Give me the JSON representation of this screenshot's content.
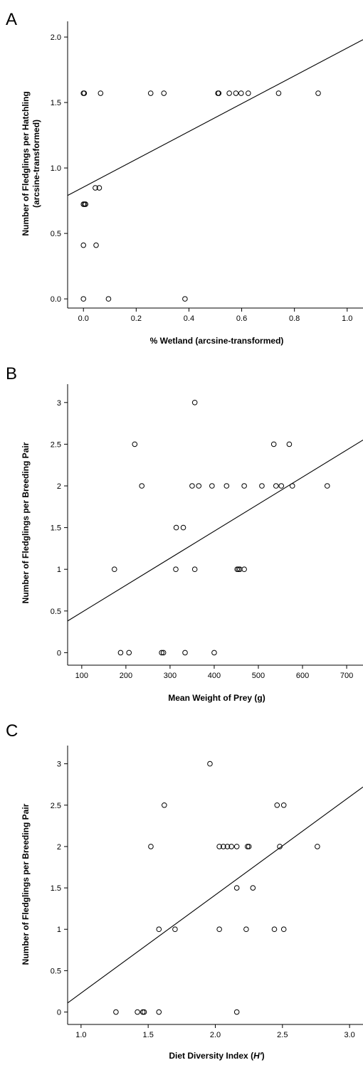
{
  "chart_data": [
    {
      "panel": "A",
      "type": "scatter",
      "xlabel": "% Wetland (arcsine-transformed)",
      "ylabel": "Number of Fledglings per Hatchling",
      "ylabel2": "(arcsine-transformed)",
      "xlim": [
        -0.06,
        1.06
      ],
      "ylim": [
        -0.07,
        2.12
      ],
      "xticks": [
        "0.0",
        "0.2",
        "0.4",
        "0.6",
        "0.8",
        "1.0"
      ],
      "xtick_values": [
        0.0,
        0.2,
        0.4,
        0.6,
        0.8,
        1.0
      ],
      "yticks": [
        "0.0",
        "0.5",
        "1.0",
        "1.5",
        "2.0"
      ],
      "ytick_values": [
        0.0,
        0.5,
        1.0,
        1.5,
        2.0
      ],
      "points": [
        [
          0.0,
          1.571
        ],
        [
          0.003,
          1.571
        ],
        [
          0.065,
          1.571
        ],
        [
          0.255,
          1.571
        ],
        [
          0.305,
          1.571
        ],
        [
          0.51,
          1.571
        ],
        [
          0.513,
          1.571
        ],
        [
          0.553,
          1.571
        ],
        [
          0.578,
          1.571
        ],
        [
          0.598,
          1.571
        ],
        [
          0.625,
          1.571
        ],
        [
          0.74,
          1.571
        ],
        [
          0.89,
          1.571
        ],
        [
          0.045,
          0.848
        ],
        [
          0.06,
          0.848
        ],
        [
          0.0,
          0.723
        ],
        [
          0.004,
          0.723
        ],
        [
          0.008,
          0.723
        ],
        [
          0.0,
          0.41
        ],
        [
          0.048,
          0.41
        ],
        [
          0.0,
          0.0
        ],
        [
          0.095,
          0.0
        ],
        [
          0.385,
          0.0
        ]
      ],
      "fit_line": [
        [
          -0.06,
          0.79
        ],
        [
          1.06,
          1.98
        ]
      ]
    },
    {
      "panel": "B",
      "type": "scatter",
      "xlabel": "Mean Weight of Prey (g)",
      "ylabel": "Number of Fledglings per Breeding Pair",
      "xlim": [
        68,
        737
      ],
      "ylim": [
        -0.15,
        3.22
      ],
      "xticks": [
        "100",
        "200",
        "300",
        "400",
        "500",
        "600",
        "700"
      ],
      "xtick_values": [
        100,
        200,
        300,
        400,
        500,
        600,
        700
      ],
      "yticks": [
        "0",
        "0.5",
        "1",
        "1.5",
        "2",
        "2.5",
        "3"
      ],
      "ytick_values": [
        0,
        0.5,
        1,
        1.5,
        2,
        2.5,
        3
      ],
      "points": [
        [
          356,
          3.0
        ],
        [
          220,
          2.5
        ],
        [
          535,
          2.5
        ],
        [
          570,
          2.5
        ],
        [
          236,
          2.0
        ],
        [
          350,
          2.0
        ],
        [
          365,
          2.0
        ],
        [
          395,
          2.0
        ],
        [
          428,
          2.0
        ],
        [
          468,
          2.0
        ],
        [
          508,
          2.0
        ],
        [
          540,
          2.0
        ],
        [
          552,
          2.0
        ],
        [
          577,
          2.0
        ],
        [
          656,
          2.0
        ],
        [
          314,
          1.5
        ],
        [
          330,
          1.5
        ],
        [
          174,
          1.0
        ],
        [
          313,
          1.0
        ],
        [
          356,
          1.0
        ],
        [
          452,
          1.0
        ],
        [
          455,
          1.0
        ],
        [
          458,
          1.0
        ],
        [
          468,
          1.0
        ],
        [
          188,
          0.0
        ],
        [
          207,
          0.0
        ],
        [
          281,
          0.0
        ],
        [
          285,
          0.0
        ],
        [
          334,
          0.0
        ],
        [
          400,
          0.0
        ]
      ],
      "fit_line": [
        [
          68,
          0.38
        ],
        [
          737,
          2.55
        ]
      ]
    },
    {
      "panel": "C",
      "type": "scatter",
      "xlabel": "Diet Diversity Index (",
      "xlabel_italic": "H′",
      "xlabel_end": ")",
      "ylabel": "Number of Fledglings per Breeding Pair",
      "xlim": [
        0.9,
        3.1
      ],
      "ylim": [
        -0.15,
        3.22
      ],
      "xticks": [
        "1.0",
        "1.5",
        "2.0",
        "2.5",
        "3.0"
      ],
      "xtick_values": [
        1.0,
        1.5,
        2.0,
        2.5,
        3.0
      ],
      "yticks": [
        "0",
        "0.5",
        "1",
        "1.5",
        "2",
        "2.5",
        "3"
      ],
      "ytick_values": [
        0,
        0.5,
        1,
        1.5,
        2,
        2.5,
        3
      ],
      "points": [
        [
          1.96,
          3.0
        ],
        [
          1.62,
          2.5
        ],
        [
          2.46,
          2.5
        ],
        [
          2.51,
          2.5
        ],
        [
          1.52,
          2.0
        ],
        [
          2.03,
          2.0
        ],
        [
          2.06,
          2.0
        ],
        [
          2.09,
          2.0
        ],
        [
          2.12,
          2.0
        ],
        [
          2.16,
          2.0
        ],
        [
          2.24,
          2.0
        ],
        [
          2.25,
          2.0
        ],
        [
          2.48,
          2.0
        ],
        [
          2.76,
          2.0
        ],
        [
          2.16,
          1.5
        ],
        [
          2.28,
          1.5
        ],
        [
          1.58,
          1.0
        ],
        [
          1.7,
          1.0
        ],
        [
          2.03,
          1.0
        ],
        [
          2.23,
          1.0
        ],
        [
          2.44,
          1.0
        ],
        [
          2.51,
          1.0
        ],
        [
          1.26,
          0.0
        ],
        [
          1.42,
          0.0
        ],
        [
          1.46,
          0.0
        ],
        [
          1.47,
          0.0
        ],
        [
          1.58,
          0.0
        ],
        [
          2.16,
          0.0
        ]
      ],
      "fit_line": [
        [
          0.9,
          0.11
        ],
        [
          3.1,
          2.72
        ]
      ]
    }
  ]
}
